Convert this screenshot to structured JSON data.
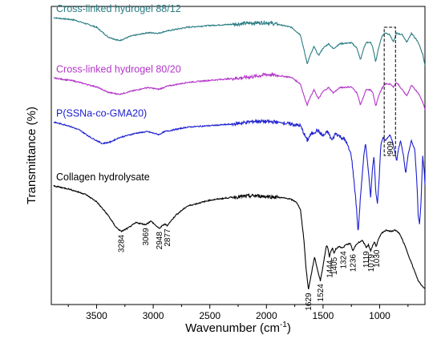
{
  "chart_data": {
    "type": "line",
    "xlabel_main": "Wavenumber (cm",
    "xlabel_sup": "-1",
    "xlabel_tail": ")",
    "ylabel": "Transmittance (%)",
    "xlim": [
      3900,
      600
    ],
    "x_reversed": true,
    "x_ticks": [
      "3500",
      "3000",
      "2500",
      "2000",
      "1500",
      "1000"
    ],
    "x_tick_values": [
      3500,
      3000,
      2500,
      2000,
      1500,
      1000
    ],
    "grid": false,
    "legend": "labels placed above each curve",
    "series": [
      {
        "name": "Cross-linked hydrogel 88/12",
        "color": "#2a7d84",
        "points": [
          [
            3880,
            0.962
          ],
          [
            3700,
            0.955
          ],
          [
            3500,
            0.93
          ],
          [
            3400,
            0.898
          ],
          [
            3300,
            0.885
          ],
          [
            3200,
            0.9
          ],
          [
            3050,
            0.912
          ],
          [
            2950,
            0.91
          ],
          [
            2900,
            0.916
          ],
          [
            2700,
            0.93
          ],
          [
            2500,
            0.936
          ],
          [
            2300,
            0.94
          ],
          [
            2100,
            0.945
          ],
          [
            2000,
            0.946
          ],
          [
            1900,
            0.94
          ],
          [
            1780,
            0.93
          ],
          [
            1700,
            0.905
          ],
          [
            1660,
            0.84
          ],
          [
            1640,
            0.808
          ],
          [
            1620,
            0.83
          ],
          [
            1580,
            0.865
          ],
          [
            1540,
            0.835
          ],
          [
            1500,
            0.86
          ],
          [
            1450,
            0.875
          ],
          [
            1410,
            0.858
          ],
          [
            1350,
            0.875
          ],
          [
            1250,
            0.878
          ],
          [
            1200,
            0.86
          ],
          [
            1170,
            0.82
          ],
          [
            1140,
            0.86
          ],
          [
            1120,
            0.878
          ],
          [
            1080,
            0.88
          ],
          [
            1060,
            0.86
          ],
          [
            1035,
            0.815
          ],
          [
            1010,
            0.86
          ],
          [
            980,
            0.9
          ],
          [
            950,
            0.912
          ],
          [
            910,
            0.905
          ],
          [
            880,
            0.88
          ],
          [
            850,
            0.91
          ],
          [
            800,
            0.905
          ],
          [
            760,
            0.88
          ],
          [
            720,
            0.91
          ],
          [
            660,
            0.88
          ],
          [
            620,
            0.84
          ],
          [
            600,
            0.8
          ]
        ]
      },
      {
        "name": "Cross-linked hydrogel 80/20",
        "color": "#b336c9",
        "points": [
          [
            3880,
            0.76
          ],
          [
            3700,
            0.75
          ],
          [
            3500,
            0.73
          ],
          [
            3400,
            0.712
          ],
          [
            3300,
            0.705
          ],
          [
            3200,
            0.715
          ],
          [
            3050,
            0.728
          ],
          [
            2950,
            0.722
          ],
          [
            2880,
            0.732
          ],
          [
            2700,
            0.745
          ],
          [
            2500,
            0.752
          ],
          [
            2300,
            0.758
          ],
          [
            2100,
            0.765
          ],
          [
            2000,
            0.772
          ],
          [
            1900,
            0.768
          ],
          [
            1780,
            0.762
          ],
          [
            1700,
            0.74
          ],
          [
            1660,
            0.69
          ],
          [
            1640,
            0.67
          ],
          [
            1620,
            0.69
          ],
          [
            1580,
            0.72
          ],
          [
            1540,
            0.69
          ],
          [
            1500,
            0.715
          ],
          [
            1450,
            0.728
          ],
          [
            1410,
            0.71
          ],
          [
            1350,
            0.728
          ],
          [
            1250,
            0.73
          ],
          [
            1200,
            0.71
          ],
          [
            1170,
            0.67
          ],
          [
            1140,
            0.7
          ],
          [
            1120,
            0.72
          ],
          [
            1080,
            0.72
          ],
          [
            1060,
            0.71
          ],
          [
            1035,
            0.665
          ],
          [
            1010,
            0.7
          ],
          [
            980,
            0.725
          ],
          [
            950,
            0.74
          ],
          [
            910,
            0.74
          ],
          [
            880,
            0.73
          ],
          [
            850,
            0.745
          ],
          [
            800,
            0.72
          ],
          [
            760,
            0.7
          ],
          [
            720,
            0.735
          ],
          [
            660,
            0.71
          ],
          [
            620,
            0.68
          ],
          [
            600,
            0.655
          ]
        ]
      },
      {
        "name": "P(SSNa-co-GMA20)",
        "color": "#1c1fcf",
        "points": [
          [
            3880,
            0.612
          ],
          [
            3750,
            0.6
          ],
          [
            3650,
            0.585
          ],
          [
            3550,
            0.56
          ],
          [
            3450,
            0.54
          ],
          [
            3380,
            0.545
          ],
          [
            3300,
            0.56
          ],
          [
            3150,
            0.575
          ],
          [
            3050,
            0.58
          ],
          [
            2950,
            0.57
          ],
          [
            2900,
            0.58
          ],
          [
            2700,
            0.595
          ],
          [
            2500,
            0.6
          ],
          [
            2300,
            0.605
          ],
          [
            2100,
            0.615
          ],
          [
            1900,
            0.612
          ],
          [
            1780,
            0.605
          ],
          [
            1700,
            0.6
          ],
          [
            1670,
            0.575
          ],
          [
            1640,
            0.55
          ],
          [
            1610,
            0.57
          ],
          [
            1550,
            0.585
          ],
          [
            1500,
            0.565
          ],
          [
            1460,
            0.58
          ],
          [
            1420,
            0.55
          ],
          [
            1390,
            0.575
          ],
          [
            1300,
            0.55
          ],
          [
            1250,
            0.5
          ],
          [
            1210,
            0.35
          ],
          [
            1190,
            0.24
          ],
          [
            1170,
            0.36
          ],
          [
            1140,
            0.5
          ],
          [
            1125,
            0.54
          ],
          [
            1100,
            0.45
          ],
          [
            1080,
            0.36
          ],
          [
            1065,
            0.45
          ],
          [
            1050,
            0.5
          ],
          [
            1035,
            0.38
          ],
          [
            1020,
            0.34
          ],
          [
            1005,
            0.42
          ],
          [
            990,
            0.535
          ],
          [
            970,
            0.56
          ],
          [
            950,
            0.55
          ],
          [
            930,
            0.56
          ],
          [
            910,
            0.57
          ],
          [
            890,
            0.55
          ],
          [
            870,
            0.52
          ],
          [
            850,
            0.48
          ],
          [
            835,
            0.52
          ],
          [
            815,
            0.55
          ],
          [
            790,
            0.5
          ],
          [
            770,
            0.44
          ],
          [
            750,
            0.5
          ],
          [
            720,
            0.55
          ],
          [
            690,
            0.52
          ],
          [
            670,
            0.4
          ],
          [
            660,
            0.3
          ],
          [
            648,
            0.27
          ],
          [
            635,
            0.34
          ],
          [
            620,
            0.5
          ],
          [
            605,
            0.44
          ],
          [
            600,
            0.4
          ]
        ]
      },
      {
        "name": "Collagen hydrolysate",
        "color": "#000000",
        "points": [
          [
            3880,
            0.398
          ],
          [
            3750,
            0.388
          ],
          [
            3600,
            0.37
          ],
          [
            3500,
            0.345
          ],
          [
            3400,
            0.3
          ],
          [
            3330,
            0.26
          ],
          [
            3284,
            0.245
          ],
          [
            3230,
            0.255
          ],
          [
            3150,
            0.275
          ],
          [
            3069,
            0.268
          ],
          [
            3020,
            0.28
          ],
          [
            2948,
            0.255
          ],
          [
            2900,
            0.27
          ],
          [
            2877,
            0.265
          ],
          [
            2800,
            0.3
          ],
          [
            2700,
            0.33
          ],
          [
            2500,
            0.35
          ],
          [
            2300,
            0.36
          ],
          [
            2100,
            0.365
          ],
          [
            1900,
            0.36
          ],
          [
            1800,
            0.355
          ],
          [
            1740,
            0.345
          ],
          [
            1700,
            0.32
          ],
          [
            1670,
            0.22
          ],
          [
            1650,
            0.12
          ],
          [
            1629,
            0.05
          ],
          [
            1610,
            0.09
          ],
          [
            1575,
            0.16
          ],
          [
            1545,
            0.11
          ],
          [
            1524,
            0.08
          ],
          [
            1500,
            0.13
          ],
          [
            1470,
            0.2
          ],
          [
            1455,
            0.185
          ],
          [
            1444,
            0.16
          ],
          [
            1430,
            0.18
          ],
          [
            1415,
            0.19
          ],
          [
            1405,
            0.17
          ],
          [
            1390,
            0.185
          ],
          [
            1360,
            0.195
          ],
          [
            1324,
            0.19
          ],
          [
            1300,
            0.2
          ],
          [
            1260,
            0.205
          ],
          [
            1236,
            0.18
          ],
          [
            1210,
            0.2
          ],
          [
            1180,
            0.21
          ],
          [
            1150,
            0.215
          ],
          [
            1119,
            0.19
          ],
          [
            1100,
            0.2
          ],
          [
            1079,
            0.18
          ],
          [
            1060,
            0.2
          ],
          [
            1045,
            0.21
          ],
          [
            1030,
            0.195
          ],
          [
            1010,
            0.22
          ],
          [
            980,
            0.24
          ],
          [
            940,
            0.25
          ],
          [
            900,
            0.245
          ],
          [
            860,
            0.25
          ],
          [
            820,
            0.235
          ],
          [
            780,
            0.2
          ],
          [
            740,
            0.16
          ],
          [
            700,
            0.12
          ],
          [
            660,
            0.08
          ],
          [
            620,
            0.06
          ],
          [
            600,
            0.055
          ]
        ]
      }
    ],
    "peak_labels": [
      {
        "text": "3284",
        "x": 3284,
        "series": 3
      },
      {
        "text": "3069",
        "x": 3069,
        "series": 3
      },
      {
        "text": "2948",
        "x": 2948,
        "series": 3
      },
      {
        "text": "2877",
        "x": 2877,
        "series": 3
      },
      {
        "text": "1629",
        "x": 1629,
        "series": 3
      },
      {
        "text": "1524",
        "x": 1524,
        "series": 3
      },
      {
        "text": "1444",
        "x": 1444,
        "series": 3
      },
      {
        "text": "1405",
        "x": 1405,
        "series": 3
      },
      {
        "text": "1324",
        "x": 1324,
        "series": 3
      },
      {
        "text": "1236",
        "x": 1236,
        "series": 3
      },
      {
        "text": "1119",
        "x": 1119,
        "series": 3
      },
      {
        "text": "1079",
        "x": 1079,
        "series": 3
      },
      {
        "text": "1030",
        "x": 1030,
        "series": 3
      },
      {
        "text": "909",
        "x": 909,
        "series": 2
      }
    ],
    "highlight_region": {
      "x_range": [
        960,
        860
      ],
      "style": "dashed"
    }
  }
}
